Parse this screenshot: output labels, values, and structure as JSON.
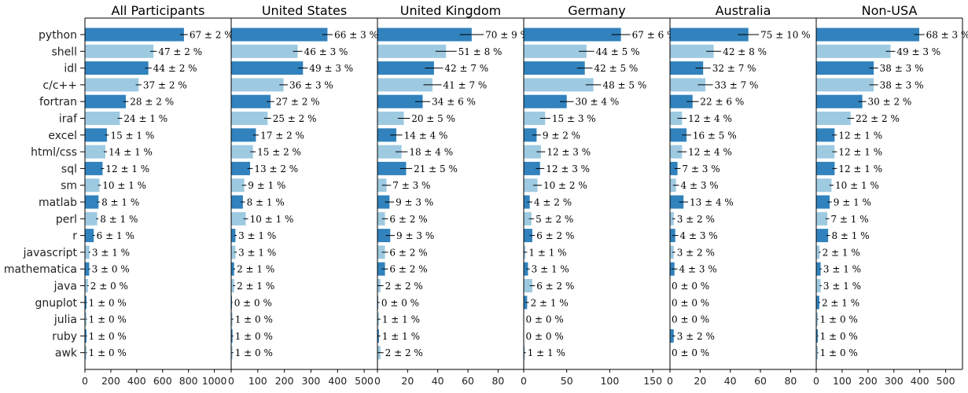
{
  "chart_data": {
    "type": "bar",
    "orientation": "horizontal",
    "categories": [
      "python",
      "shell",
      "idl",
      "c/c++",
      "fortran",
      "iraf",
      "excel",
      "html/css",
      "sql",
      "sm",
      "matlab",
      "perl",
      "r",
      "javascript",
      "mathematica",
      "java",
      "gnuplot",
      "julia",
      "ruby",
      "awk"
    ],
    "colors": {
      "dark": "#3182bd",
      "light": "#9ecae1",
      "error_bar": "#000000"
    },
    "grid": false,
    "legend": "none",
    "panels": [
      {
        "title": "All Participants",
        "xlim": [
          0,
          1130
        ],
        "xticks": [
          "0",
          "200",
          "400",
          "600",
          "800",
          "1000"
        ],
        "xtick_values": [
          0,
          200,
          400,
          600,
          800,
          1000
        ],
        "counts": [
          765,
          530,
          490,
          415,
          316,
          270,
          170,
          158,
          136,
          112,
          105,
          95,
          68,
          35,
          33,
          23,
          12,
          12,
          12,
          12
        ],
        "errors": [
          30,
          25,
          25,
          22,
          20,
          18,
          15,
          13,
          12,
          11,
          11,
          10,
          9,
          7,
          7,
          6,
          4,
          4,
          4,
          4
        ],
        "labels": [
          "67 ± 2 %",
          "47 ± 2 %",
          "44 ± 2 %",
          "37 ± 2 %",
          "28 ± 2 %",
          "24 ± 1 %",
          "15 ± 1 %",
          "14 ± 1 %",
          "12 ± 1 %",
          "10 ± 1 %",
          "8 ± 1 %",
          "8 ± 1 %",
          "6 ± 1 %",
          "3 ± 1 %",
          "3 ± 0 %",
          "2 ± 0 %",
          "1 ± 0 %",
          "1 ± 0 %",
          "1 ± 0 %",
          "1 ± 0 %"
        ]
      },
      {
        "title": "United States",
        "xlim": [
          0,
          550
        ],
        "xticks": [
          "0",
          "100",
          "200",
          "300",
          "400",
          "500"
        ],
        "xtick_values": [
          0,
          100,
          200,
          300,
          400,
          500
        ],
        "counts": [
          362,
          250,
          270,
          197,
          148,
          137,
          93,
          82,
          71,
          49,
          44,
          55,
          16,
          16,
          11,
          11,
          3,
          5,
          5,
          5
        ],
        "errors": [
          20,
          18,
          18,
          16,
          14,
          13,
          11,
          10,
          10,
          8,
          8,
          9,
          5,
          5,
          4,
          4,
          2,
          3,
          3,
          3
        ],
        "labels": [
          "66 ± 3 %",
          "46 ± 3 %",
          "49 ± 3 %",
          "36 ± 3 %",
          "27 ± 2 %",
          "25 ± 2 %",
          "17 ± 2 %",
          "15 ± 2 %",
          "13 ± 2 %",
          "9 ± 1 %",
          "8 ± 1 %",
          "10 ± 1 %",
          "3 ± 1 %",
          "3 ± 1 %",
          "2 ± 1 %",
          "2 ± 1 %",
          "0 ± 0 %",
          "1 ± 0 %",
          "1 ± 0 %",
          "1 ± 0 %"
        ]
      },
      {
        "title": "United Kingdom",
        "xlim": [
          0,
          97
        ],
        "xticks": [
          "0",
          "20",
          "40",
          "60",
          "80"
        ],
        "xtick_values": [
          0,
          20,
          40,
          60,
          80
        ],
        "counts": [
          62.5,
          45.5,
          37.5,
          36.5,
          30,
          17.5,
          12.5,
          16,
          19,
          6,
          8,
          5,
          8.5,
          5,
          5,
          2,
          0.5,
          1,
          1,
          2
        ],
        "errors": [
          8,
          7,
          6,
          6,
          5,
          4,
          4,
          4,
          4,
          3,
          3,
          2,
          3,
          2,
          2,
          2,
          1,
          1,
          1,
          2
        ],
        "labels": [
          "70 ± 9 %",
          "51 ± 8 %",
          "42 ± 7 %",
          "41 ± 7 %",
          "34 ± 6 %",
          "20 ± 5 %",
          "14 ± 4 %",
          "18 ± 4 %",
          "21 ± 5 %",
          "7 ± 3 %",
          "9 ± 3 %",
          "6 ± 2 %",
          "9 ± 3 %",
          "6 ± 2 %",
          "6 ± 2 %",
          "2 ± 2 %",
          "0 ± 0 %",
          "1 ± 1 %",
          "1 ± 1 %",
          "2 ± 2 %"
        ]
      },
      {
        "title": "Germany",
        "xlim": [
          0,
          170
        ],
        "xticks": [
          "0",
          "50",
          "100",
          "150"
        ],
        "xtick_values": [
          0,
          50,
          100,
          150
        ],
        "counts": [
          113,
          73,
          71,
          81,
          50,
          25,
          15,
          20,
          19,
          16,
          7,
          9,
          10,
          2,
          5,
          10,
          4,
          0.5,
          0.5,
          1.5
        ],
        "errors": [
          11,
          9,
          9,
          9,
          8,
          6,
          5,
          5,
          5,
          5,
          3,
          3,
          3,
          2,
          2,
          3,
          2,
          0,
          0,
          1
        ],
        "labels": [
          "67 ± 6 %",
          "44 ± 5 %",
          "42 ± 5 %",
          "48 ± 5 %",
          "30 ± 4 %",
          "15 ± 3 %",
          "9 ± 2 %",
          "12 ± 3 %",
          "12 ± 3 %",
          "10 ± 2 %",
          "4 ± 2 %",
          "5 ± 2 %",
          "6 ± 2 %",
          "1 ± 1 %",
          "3 ± 1 %",
          "6 ± 2 %",
          "2 ± 1 %",
          "0 ± 0 %",
          "0 ± 0 %",
          "1 ± 1 %"
        ]
      },
      {
        "title": "Australia",
        "xlim": [
          0,
          97
        ],
        "xticks": [
          "0",
          "20",
          "40",
          "60",
          "80"
        ],
        "xtick_values": [
          0,
          20,
          40,
          60,
          80
        ],
        "counts": [
          52,
          29,
          22,
          23.5,
          15,
          8,
          11,
          8,
          5,
          4,
          9,
          2.5,
          3.5,
          2.5,
          3,
          0,
          0,
          0,
          2.5,
          0
        ],
        "errors": [
          7,
          5,
          5,
          5,
          4,
          3,
          3,
          3,
          2,
          2,
          3,
          1,
          2,
          1,
          2,
          0,
          0,
          0,
          1,
          0
        ],
        "labels": [
          "75 ± 10 %",
          "42 ± 8 %",
          "32 ± 7 %",
          "33 ± 7 %",
          "22 ± 6 %",
          "12 ± 4 %",
          "16 ± 5 %",
          "12 ± 4 %",
          "7 ± 3 %",
          "4 ± 3 %",
          "13 ± 4 %",
          "3 ± 2 %",
          "4 ± 3 %",
          "3 ± 2 %",
          "4 ± 3 %",
          "0 ± 0 %",
          "0 ± 0 %",
          "0 ± 0 %",
          "3 ± 2 %",
          "0 ± 0 %"
        ]
      },
      {
        "title": "Non-USA",
        "xlim": [
          0,
          565
        ],
        "xticks": [
          "0",
          "100",
          "200",
          "300",
          "400",
          "500"
        ],
        "xtick_values": [
          0,
          100,
          200,
          300,
          400,
          500
        ],
        "counts": [
          398,
          287,
          222,
          222,
          178,
          133,
          71,
          71,
          71,
          59,
          52,
          43,
          46,
          13,
          17,
          17,
          12,
          6,
          6,
          6
        ],
        "errors": [
          20,
          18,
          17,
          17,
          15,
          13,
          9,
          9,
          9,
          8,
          8,
          7,
          7,
          4,
          4,
          4,
          3,
          2,
          2,
          2
        ],
        "labels": [
          "68 ± 3 %",
          "49 ± 3 %",
          "38 ± 3 %",
          "38 ± 3 %",
          "30 ± 2 %",
          "22 ± 2 %",
          "12 ± 1 %",
          "12 ± 1 %",
          "12 ± 1 %",
          "10 ± 1 %",
          "9 ± 1 %",
          "7 ± 1 %",
          "8 ± 1 %",
          "2 ± 1 %",
          "3 ± 1 %",
          "3 ± 1 %",
          "2 ± 1 %",
          "1 ± 0 %",
          "1 ± 0 %",
          "1 ± 0 %"
        ]
      }
    ]
  }
}
